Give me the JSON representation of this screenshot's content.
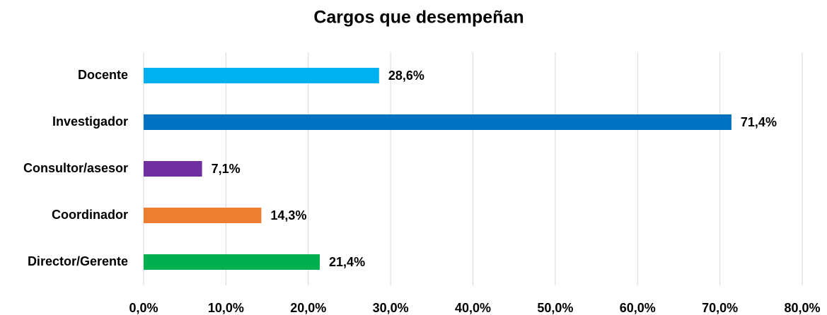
{
  "chart_data": {
    "type": "bar",
    "orientation": "horizontal",
    "title": "Cargos que desempeñan",
    "categories": [
      "Docente",
      "Investigador",
      "Consultor/asesor",
      "Coordinador",
      "Director/Gerente"
    ],
    "values": [
      28.6,
      71.4,
      7.1,
      14.3,
      21.4
    ],
    "value_labels": [
      "28,6%",
      "71,4%",
      "7,1%",
      "14,3%",
      "21,4%"
    ],
    "colors": [
      "#00b0f0",
      "#0070c0",
      "#7030a0",
      "#ed7d31",
      "#00b050"
    ],
    "xlim": [
      0,
      80
    ],
    "xticks": [
      {
        "value": 0,
        "label": "0,0%"
      },
      {
        "value": 10,
        "label": "10,0%"
      },
      {
        "value": 20,
        "label": "20,0%"
      },
      {
        "value": 30,
        "label": "30,0%"
      },
      {
        "value": 40,
        "label": "40,0%"
      },
      {
        "value": 50,
        "label": "50,0%"
      },
      {
        "value": 60,
        "label": "60,0%"
      },
      {
        "value": 70,
        "label": "70,0%"
      },
      {
        "value": 80,
        "label": "80,0%"
      }
    ],
    "grid": true
  }
}
